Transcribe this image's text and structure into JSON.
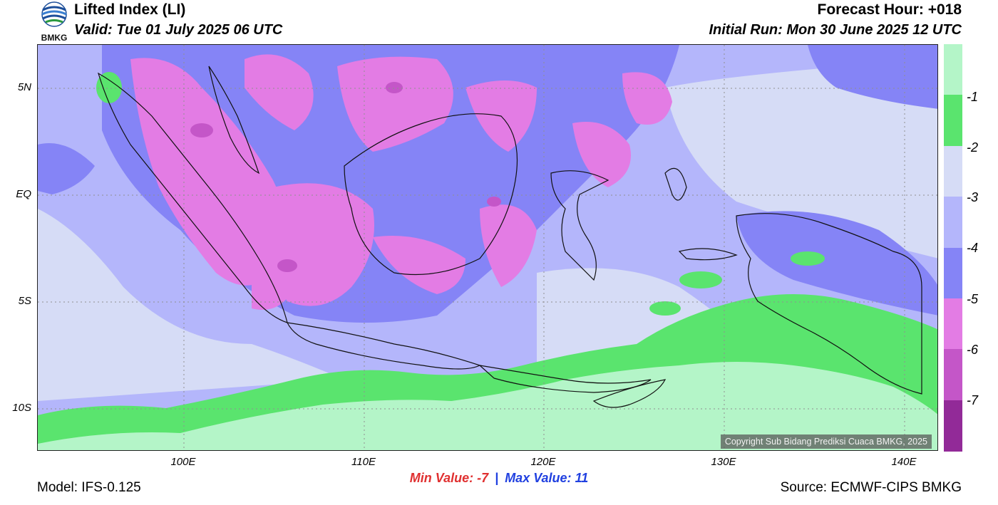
{
  "header": {
    "title": "Lifted Index (LI)",
    "valid": "Valid: Tue 01 July 2025 06 UTC",
    "forecast_hour": "Forecast Hour: +018",
    "initial_run": "Initial Run: Mon 30 June 2025 12 UTC",
    "logo_text": "BMKG"
  },
  "map": {
    "lat_labels": [
      "5N",
      "EQ",
      "5S",
      "10S"
    ],
    "lon_labels": [
      "100E",
      "110E",
      "120E",
      "130E",
      "140E"
    ],
    "copyright": "Copyright Sub Bidang Prediksi Cuaca BMKG, 2025",
    "colors": {
      "lt_m1": "#b4f5c8",
      "m1": "#5ae46e",
      "m2": "#d6dcf6",
      "m3": "#b4b6fb",
      "m4": "#8584f6",
      "m5": "#e37ce4",
      "m6": "#c456c8",
      "m7": "#922a98"
    }
  },
  "colorbar": {
    "labels": [
      "-1",
      "-2",
      "-3",
      "-4",
      "-5",
      "-6",
      "-7"
    ],
    "colors": [
      "#b4f5c8",
      "#5ae46e",
      "#d6dcf6",
      "#b4b6fb",
      "#8584f6",
      "#e37ce4",
      "#c456c8",
      "#922a98"
    ]
  },
  "footer": {
    "min_label": "Min Value:",
    "min_value": "-7",
    "separator": "|",
    "max_label": "Max Value:",
    "max_value": "11",
    "model": "Model: IFS-0.125",
    "source": "Source: ECMWF-CIPS BMKG"
  }
}
